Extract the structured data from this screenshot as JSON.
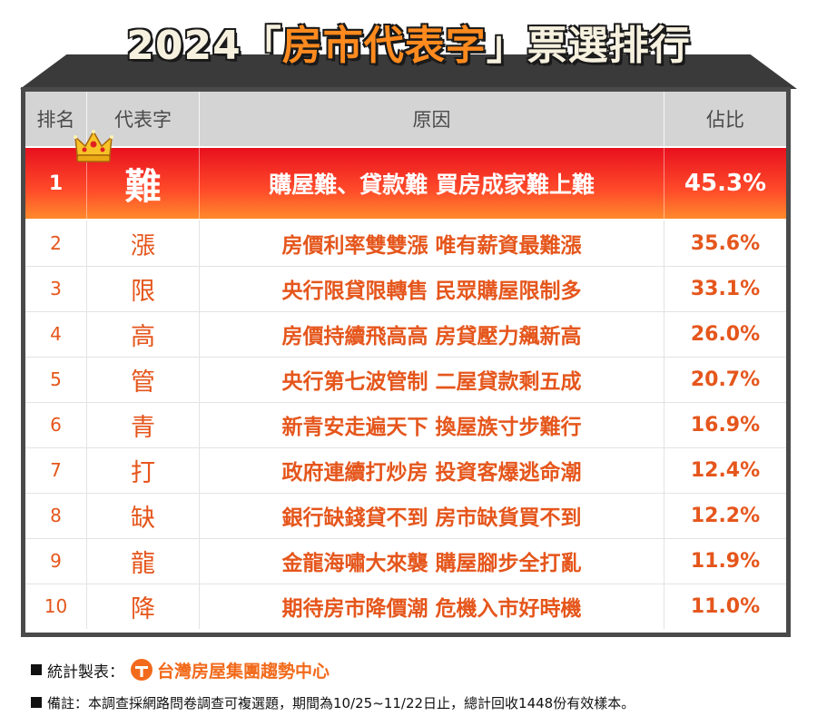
{
  "title": {
    "year": "2024",
    "open_bracket": "「",
    "keyword": "房市代表字",
    "close_bracket": "」",
    "tail": "票選排行"
  },
  "table": {
    "headers": {
      "rank": "排名",
      "char": "代表字",
      "reason": "原因",
      "share": "佔比"
    },
    "top": {
      "rank": "1",
      "char": "難",
      "reason": "購屋難、貸款難 買房成家難上難",
      "share": "45.3%"
    },
    "rows": [
      {
        "rank": "2",
        "char": "漲",
        "reason": "房價利率雙雙漲 唯有薪資最難漲",
        "share": "35.6%"
      },
      {
        "rank": "3",
        "char": "限",
        "reason": "央行限貸限轉售 民眾購屋限制多",
        "share": "33.1%"
      },
      {
        "rank": "4",
        "char": "高",
        "reason": "房價持續飛高高 房貸壓力飆新高",
        "share": "26.0%"
      },
      {
        "rank": "5",
        "char": "管",
        "reason": "央行第七波管制 二屋貸款剩五成",
        "share": "20.7%"
      },
      {
        "rank": "6",
        "char": "青",
        "reason": "新青安走遍天下 換屋族寸步難行",
        "share": "16.9%"
      },
      {
        "rank": "7",
        "char": "打",
        "reason": "政府連續打炒房 投資客爆逃命潮",
        "share": "12.4%"
      },
      {
        "rank": "8",
        "char": "缺",
        "reason": "銀行缺錢貸不到 房市缺貨買不到",
        "share": "12.2%"
      },
      {
        "rank": "9",
        "char": "龍",
        "reason": "金龍海嘯大來襲 購屋腳步全打亂",
        "share": "11.9%"
      },
      {
        "rank": "10",
        "char": "降",
        "reason": "期待房市降價潮 危機入市好時機",
        "share": "11.0%"
      }
    ]
  },
  "footer": {
    "producer_label": "統計製表：",
    "producer_name": "台灣房屋集團趨勢中心",
    "note": "備註：本調查採網路問卷調查可複選題，期間為10/25~11/22日止，總計回收1448份有效樣本。"
  },
  "colors": {
    "accent": "#e5561c",
    "highlight_top": "#e8101e",
    "highlight_bottom": "#ff8a2c",
    "header_bg": "#d4d4d4",
    "frame": "#4a4a4a",
    "brand": "#f26a1b"
  },
  "icons": {
    "crown": "crown-icon",
    "logo": "taiwan-realty-logo-icon",
    "bullet": "square-bullet-icon"
  }
}
